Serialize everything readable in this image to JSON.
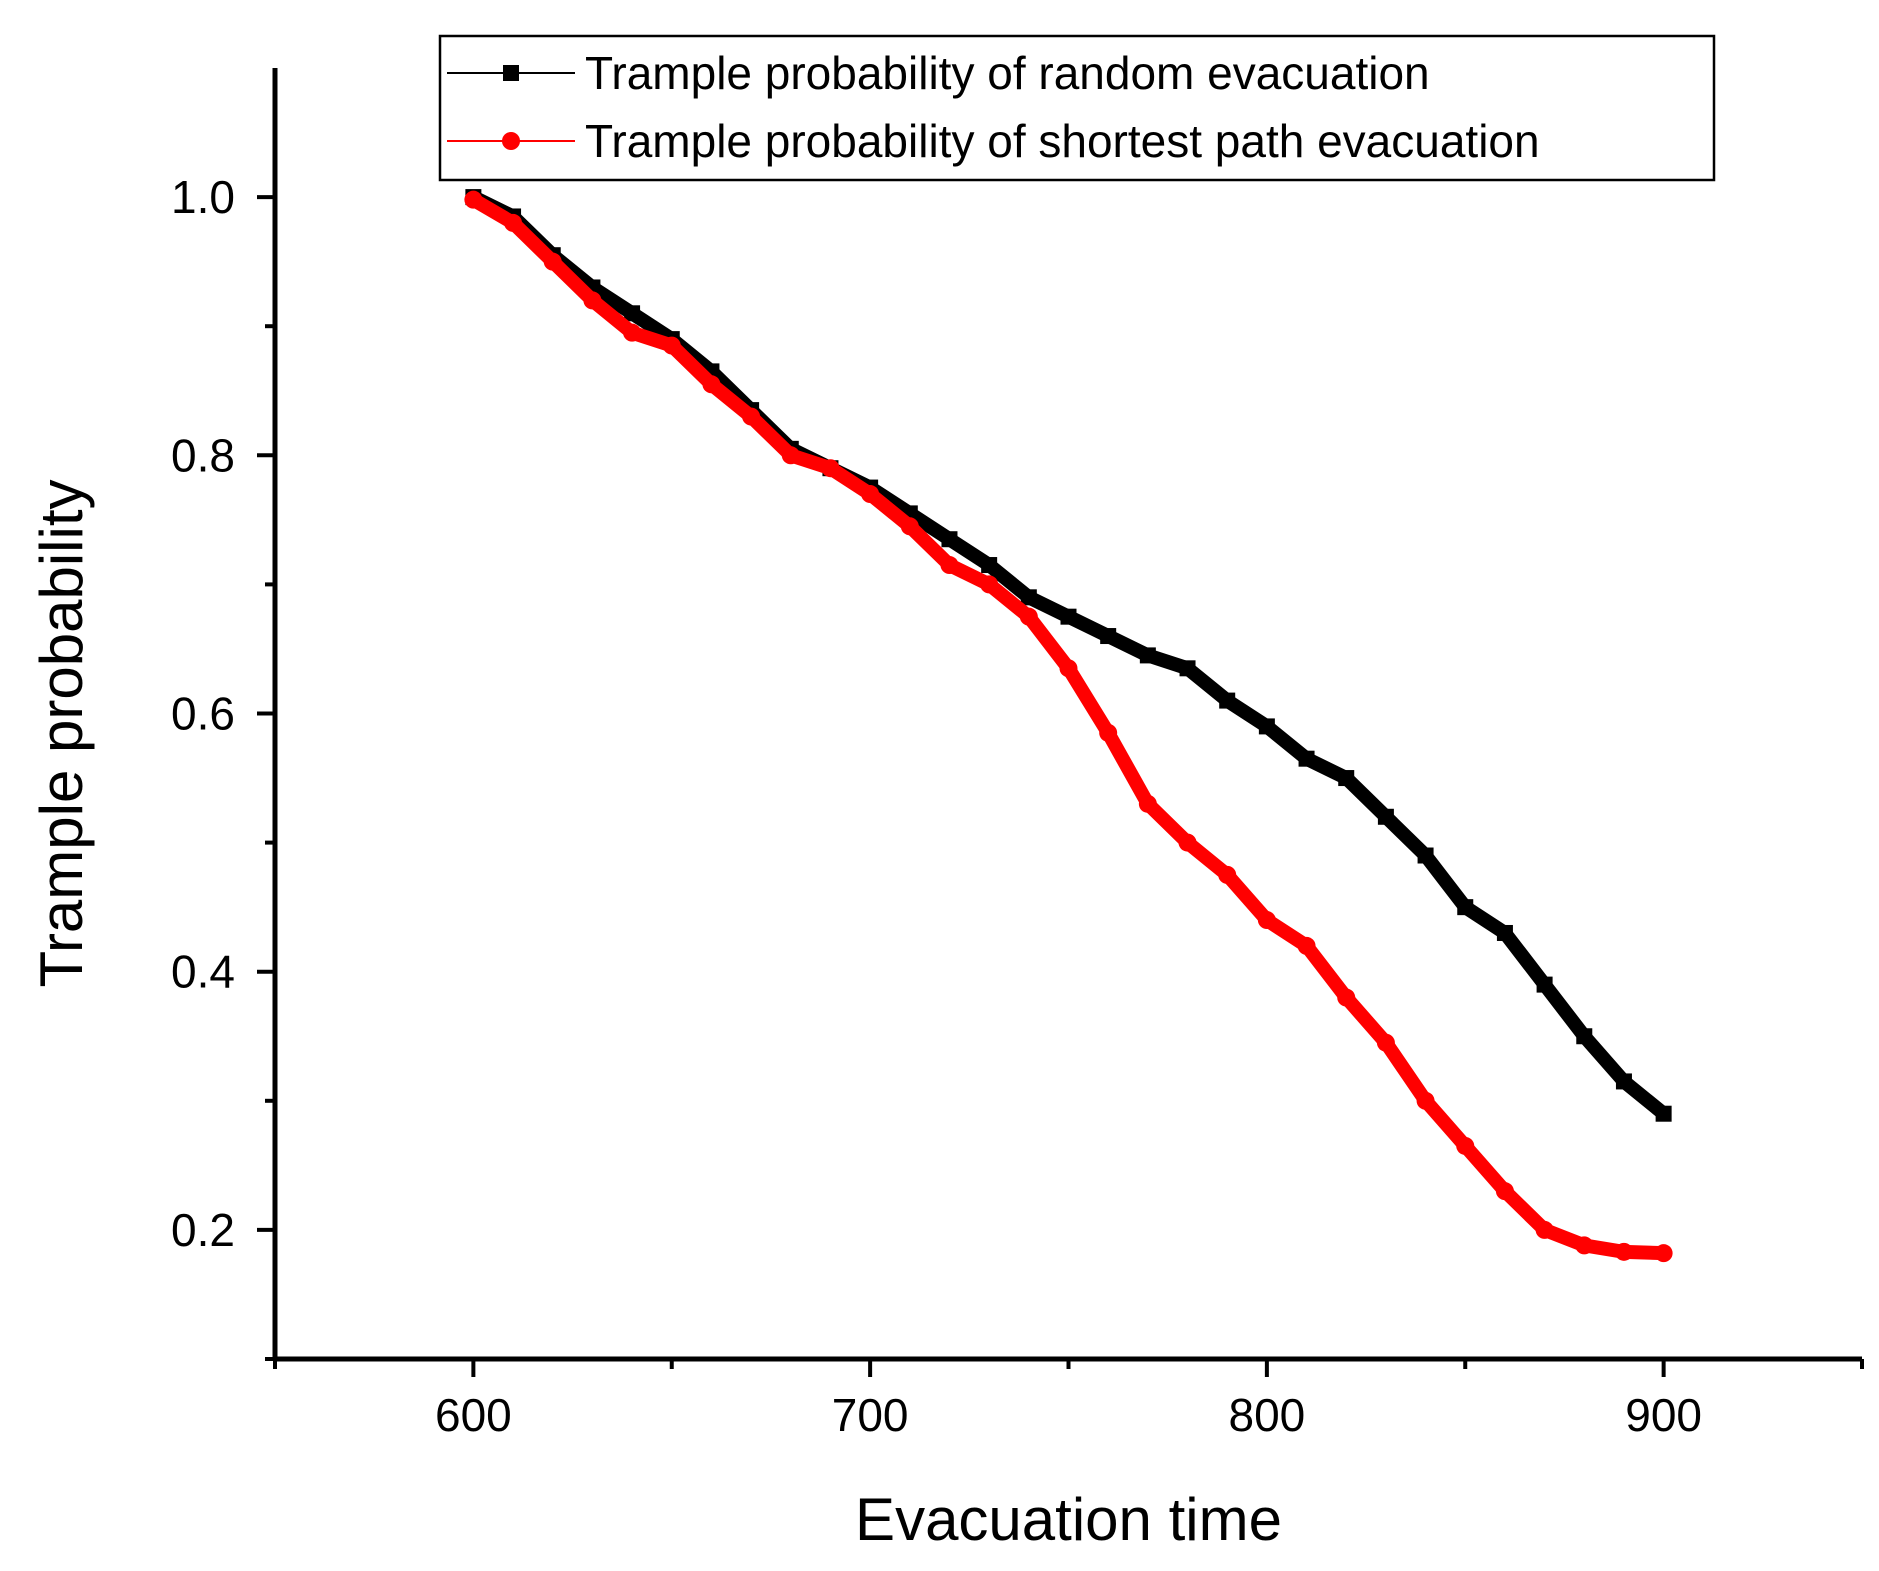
{
  "chart_data": {
    "type": "line",
    "title": "",
    "xlabel": "Evacuation time",
    "ylabel": "Trample probability",
    "xlim": [
      550,
      950
    ],
    "ylim": [
      0.1,
      1.1
    ],
    "x_ticks": [
      600,
      700,
      800,
      900
    ],
    "x_tick_labels": [
      "600",
      "700",
      "800",
      "900"
    ],
    "y_ticks": [
      0.2,
      0.4,
      0.6,
      0.8,
      1.0
    ],
    "y_tick_labels": [
      "0.2",
      "0.4",
      "0.6",
      "0.8",
      "1.0"
    ],
    "legend_position": "top",
    "series": [
      {
        "name": "Trample probability of random evacuation",
        "color": "#000000",
        "marker": "square",
        "points": [
          [
            600,
            1.0
          ],
          [
            610,
            0.985
          ],
          [
            620,
            0.955
          ],
          [
            630,
            0.93
          ],
          [
            640,
            0.91
          ],
          [
            650,
            0.89
          ],
          [
            660,
            0.865
          ],
          [
            670,
            0.835
          ],
          [
            680,
            0.805
          ],
          [
            690,
            0.79
          ],
          [
            700,
            0.775
          ],
          [
            710,
            0.755
          ],
          [
            720,
            0.735
          ],
          [
            730,
            0.715
          ],
          [
            740,
            0.69
          ],
          [
            750,
            0.675
          ],
          [
            760,
            0.66
          ],
          [
            770,
            0.645
          ],
          [
            780,
            0.635
          ],
          [
            790,
            0.61
          ],
          [
            800,
            0.59
          ],
          [
            810,
            0.565
          ],
          [
            820,
            0.55
          ],
          [
            830,
            0.52
          ],
          [
            840,
            0.49
          ],
          [
            850,
            0.45
          ],
          [
            860,
            0.43
          ],
          [
            870,
            0.39
          ],
          [
            880,
            0.35
          ],
          [
            890,
            0.315
          ],
          [
            900,
            0.29
          ]
        ]
      },
      {
        "name": "Trample probability of shortest path evacuation",
        "color": "#ff0000",
        "marker": "circle",
        "points": [
          [
            600,
            0.998
          ],
          [
            610,
            0.98
          ],
          [
            620,
            0.95
          ],
          [
            630,
            0.92
          ],
          [
            640,
            0.895
          ],
          [
            650,
            0.885
          ],
          [
            660,
            0.855
          ],
          [
            670,
            0.83
          ],
          [
            680,
            0.8
          ],
          [
            690,
            0.79
          ],
          [
            700,
            0.77
          ],
          [
            710,
            0.745
          ],
          [
            720,
            0.715
          ],
          [
            730,
            0.7
          ],
          [
            740,
            0.675
          ],
          [
            750,
            0.635
          ],
          [
            760,
            0.585
          ],
          [
            770,
            0.53
          ],
          [
            780,
            0.5
          ],
          [
            790,
            0.475
          ],
          [
            800,
            0.44
          ],
          [
            810,
            0.42
          ],
          [
            820,
            0.38
          ],
          [
            830,
            0.345
          ],
          [
            840,
            0.3
          ],
          [
            850,
            0.265
          ],
          [
            860,
            0.23
          ],
          [
            870,
            0.2
          ],
          [
            880,
            0.188
          ],
          [
            890,
            0.183
          ],
          [
            900,
            0.182
          ]
        ]
      }
    ]
  }
}
